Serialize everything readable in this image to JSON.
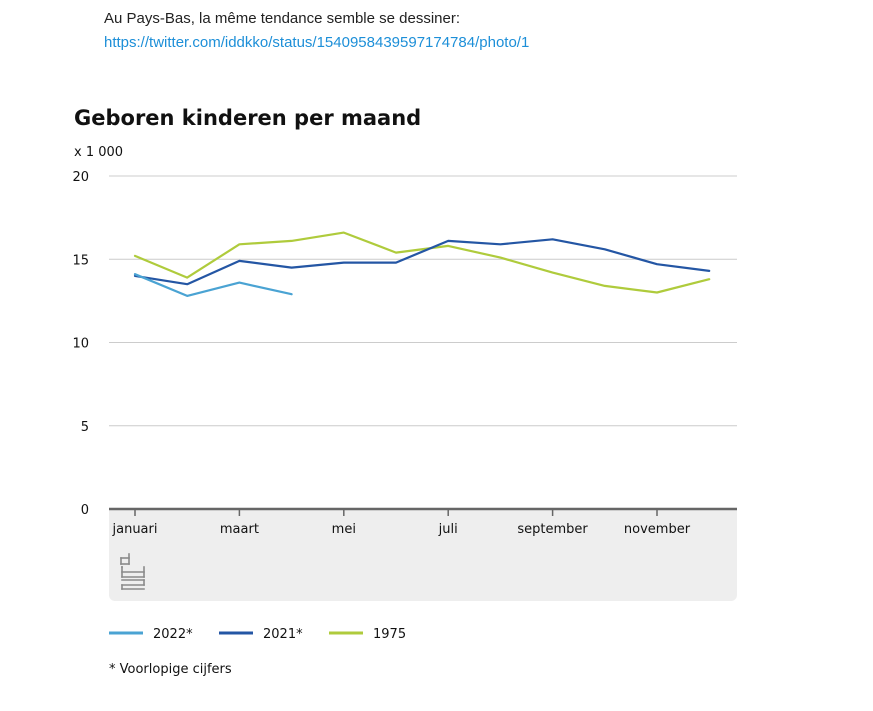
{
  "intro": {
    "text": "Au Pays-Bas, la même tendance semble se dessiner:",
    "link": "https://twitter.com/iddkko/status/1540958439597174784/photo/1"
  },
  "colors": {
    "grid": "#cccccc",
    "axis": "#666666",
    "footer_band": "#eeeeee",
    "logo": "#8a8a8a"
  },
  "chart_data": {
    "type": "line",
    "title": "Geboren kinderen per maand",
    "ylabel": "x 1 000",
    "xlabel": "",
    "ylim": [
      0,
      20
    ],
    "yticks": [
      0,
      5,
      10,
      15,
      20
    ],
    "x_count": 12,
    "xticks": [
      {
        "index": 0,
        "label": "januari"
      },
      {
        "index": 2,
        "label": "maart"
      },
      {
        "index": 4,
        "label": "mei"
      },
      {
        "index": 6,
        "label": "juli"
      },
      {
        "index": 8,
        "label": "september"
      },
      {
        "index": 10,
        "label": "november"
      }
    ],
    "series": [
      {
        "name": "1975",
        "color": "#afcb3c",
        "values": [
          15.2,
          13.9,
          15.9,
          16.1,
          16.6,
          15.4,
          15.8,
          15.1,
          14.2,
          13.4,
          13.0,
          13.8
        ]
      },
      {
        "name": "2021*",
        "color": "#2456a4",
        "values": [
          14.0,
          13.5,
          14.9,
          14.5,
          14.8,
          14.8,
          16.1,
          15.9,
          16.2,
          15.6,
          14.7,
          14.3
        ]
      },
      {
        "name": "2022*",
        "color": "#4aa3d3",
        "values": [
          14.1,
          12.8,
          13.6,
          12.9
        ]
      }
    ],
    "legend": [
      "2022*",
      "2021*",
      "1975"
    ],
    "legend_position": "bottom",
    "footnote": "* Voorlopige cijfers"
  }
}
